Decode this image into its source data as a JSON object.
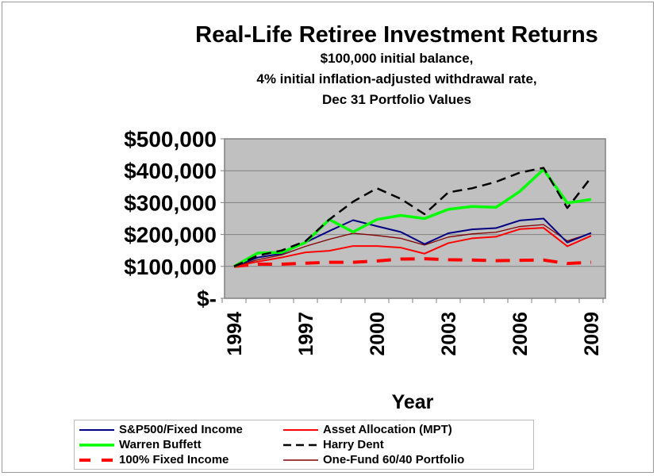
{
  "chart_data": {
    "type": "line",
    "title": "Real-Life Retiree Investment Returns",
    "subtitle": [
      "$100,000 initial balance,",
      "4% initial inflation-adjusted withdrawal rate,",
      "Dec 31 Portfolio Values"
    ],
    "xlabel": "Year",
    "ylabel": "",
    "x": [
      1994,
      1995,
      1996,
      1997,
      1998,
      1999,
      2000,
      2001,
      2002,
      2003,
      2004,
      2005,
      2006,
      2007,
      2008,
      2009
    ],
    "x_tick_labels": [
      "1994",
      "1997",
      "2000",
      "2003",
      "2006",
      "2009"
    ],
    "y_tick_labels": [
      "$500,000",
      "$400,000",
      "$300,000",
      "$200,000",
      "$100,000",
      "$-"
    ],
    "ylim": [
      0,
      500000
    ],
    "grid": true,
    "legend_placement": "bottom",
    "series": [
      {
        "name": "S&P500/Fixed Income",
        "color": "#000080",
        "style": "solid",
        "values": [
          100000,
          128000,
          140000,
          175000,
          211000,
          245000,
          226000,
          208000,
          170000,
          204000,
          216000,
          220000,
          244000,
          250000,
          175000,
          205000
        ]
      },
      {
        "name": "Asset Allocation (MPT)",
        "color": "#ff0000",
        "style": "solid",
        "values": [
          100000,
          115000,
          128000,
          144000,
          149000,
          164000,
          164000,
          159000,
          140000,
          173000,
          188000,
          193000,
          217000,
          221000,
          163000,
          196000
        ]
      },
      {
        "name": "Warren Buffett",
        "color": "#00ff00",
        "style": "thick",
        "values": [
          100000,
          142000,
          144000,
          175000,
          247000,
          208000,
          247000,
          260000,
          250000,
          279000,
          288000,
          285000,
          335000,
          404000,
          299000,
          310000
        ]
      },
      {
        "name": "Harry Dent",
        "color": "#000000",
        "style": "dashed",
        "values": [
          100000,
          134000,
          150000,
          179000,
          247000,
          303000,
          345000,
          312000,
          264000,
          332000,
          345000,
          365000,
          394000,
          409000,
          283000,
          379000
        ]
      },
      {
        "name": "100% Fixed Income",
        "color": "#ff0000",
        "style": "thick-dashed",
        "values": [
          100000,
          107000,
          107000,
          110000,
          113000,
          113000,
          117000,
          123000,
          124000,
          121000,
          120000,
          118000,
          119000,
          120000,
          109000,
          113000
        ]
      },
      {
        "name": "One-Fund 60/40 Portfolio",
        "color": "#800000",
        "style": "thin",
        "values": [
          100000,
          121000,
          136000,
          163000,
          185000,
          204000,
          197000,
          188000,
          167000,
          192000,
          202000,
          207000,
          225000,
          231000,
          180000,
          204000
        ]
      }
    ],
    "plot_background": "#c0c0c0"
  }
}
